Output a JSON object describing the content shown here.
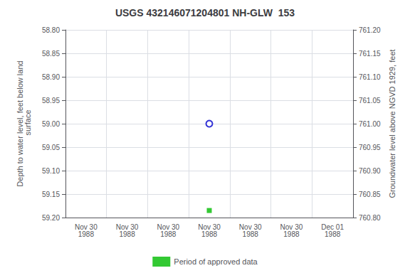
{
  "chart_data": {
    "type": "scatter",
    "title": "USGS 432146071204801 NH-GLW  153",
    "x_label": null,
    "y_label": "Depth to water level, feet below land\n surface",
    "y2_label": "Groundwater level above NGVD 1929, feet",
    "categories": [
      "Nov 30\n1988",
      "Nov 30\n1988",
      "Nov 30\n1988",
      "Nov 30\n1988",
      "Nov 30\n1988",
      "Nov 30\n1988",
      "Dec 01\n1988"
    ],
    "series": [
      {
        "color": "#0000cc",
        "marker": "open-circle",
        "values": [
          null,
          null,
          null,
          59.0,
          null,
          null,
          null
        ]
      },
      {
        "name": "Period of approved data",
        "color": "#00bb00",
        "marker": "square",
        "values": [
          null,
          null,
          null,
          59.185,
          null,
          null,
          null
        ]
      }
    ],
    "ylim": [
      59.2,
      58.8
    ],
    "yticks": [
      {
        "value": 58.8,
        "label": "58.80"
      },
      {
        "value": 58.85,
        "label": "58.85"
      },
      {
        "value": 58.9,
        "label": "58.90"
      },
      {
        "value": 58.95,
        "label": "58.95"
      },
      {
        "value": 59.0,
        "label": "59.00"
      },
      {
        "value": 59.05,
        "label": "59.05"
      },
      {
        "value": 59.1,
        "label": "59.10"
      },
      {
        "value": 59.15,
        "label": "59.15"
      },
      {
        "value": 59.2,
        "label": "59.20"
      }
    ],
    "y2lim": [
      760.8,
      761.2
    ],
    "y2ticks": [
      {
        "value": 761.2,
        "label": "761.20"
      },
      {
        "value": 761.15,
        "label": "761.15"
      },
      {
        "value": 761.1,
        "label": "761.10"
      },
      {
        "value": 761.05,
        "label": "761.05"
      },
      {
        "value": 761.0,
        "label": "761.00"
      },
      {
        "value": 760.95,
        "label": "760.95"
      },
      {
        "value": 760.9,
        "label": "760.90"
      },
      {
        "value": 760.85,
        "label": "760.85"
      },
      {
        "value": 760.8,
        "label": "760.80"
      }
    ],
    "grid": true,
    "legend": "bottom"
  }
}
